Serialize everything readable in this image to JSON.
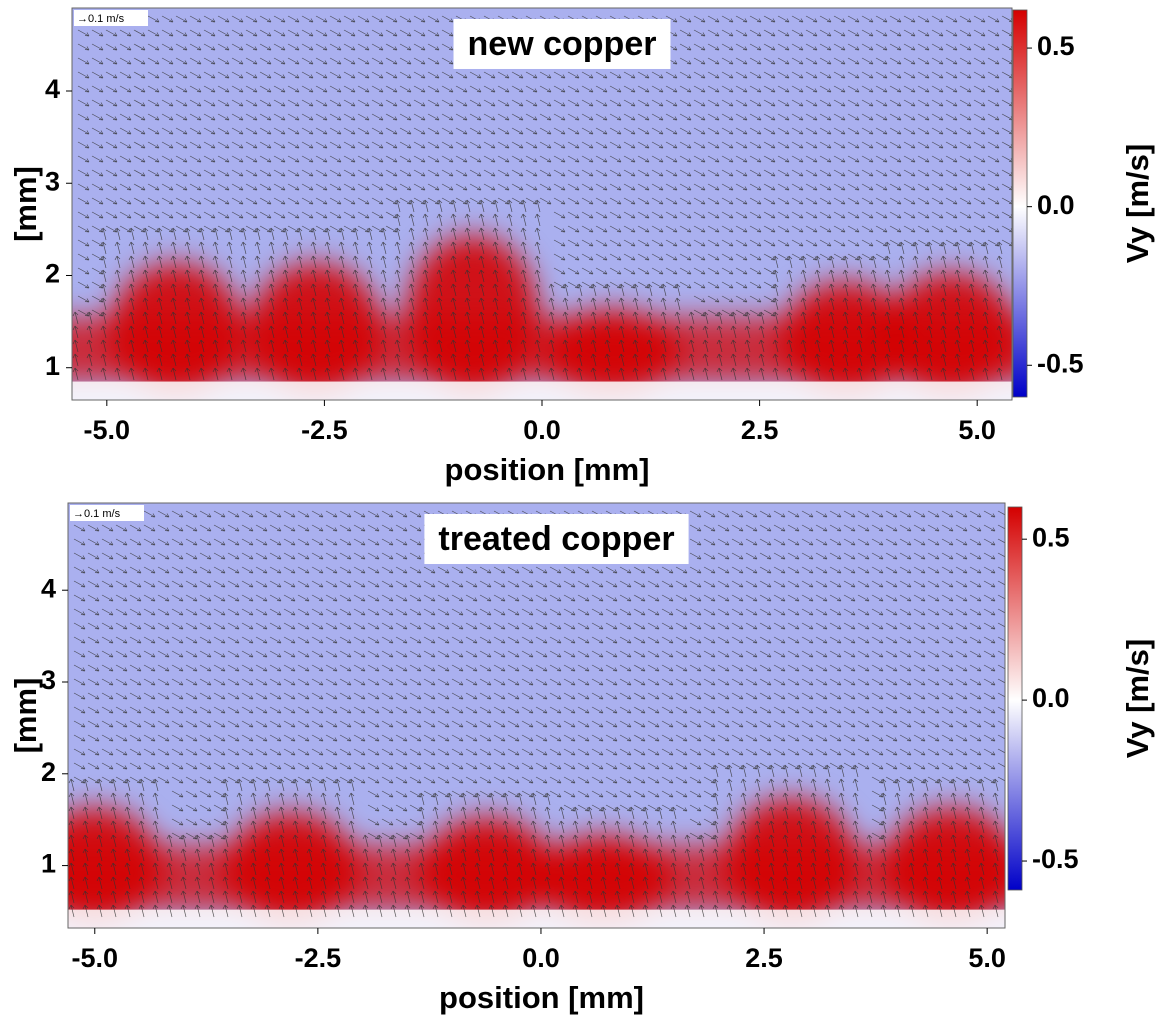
{
  "chart_data": [
    {
      "type": "vector-heatmap",
      "title": "new copper",
      "reference_vector": "→0.1 m/s",
      "xlabel": "position [mm]",
      "ylabel": "[mm]",
      "colorbar_label": "Vy [m/s]",
      "xlim": [
        -5.4,
        5.4
      ],
      "xticks": [
        {
          "value": -5,
          "label": "-5.0"
        },
        -2.5,
        {
          "value": 0,
          "label": "0.0"
        },
        2.5,
        {
          "value": 5,
          "label": "5.0"
        }
      ],
      "ylim": [
        0.65,
        4.9
      ],
      "yticks": [
        1,
        2,
        3,
        4
      ],
      "clim": [
        -0.6,
        0.62
      ],
      "cticks": [
        0.5,
        {
          "value": 0,
          "label": "0.0"
        },
        -0.5
      ],
      "colormap": [
        "#0000c8",
        "#ffffff",
        "#d40000"
      ],
      "background_color": "#aab0ef",
      "plumes": [
        {
          "x": -4.2,
          "top": 2.3
        },
        {
          "x": -2.6,
          "top": 2.3
        },
        {
          "x": -0.8,
          "top": 2.6
        },
        {
          "x": 0.8,
          "top": 1.8
        },
        {
          "x": 3.5,
          "top": 2.1
        },
        {
          "x": 4.7,
          "top": 2.2
        }
      ]
    },
    {
      "type": "vector-heatmap",
      "title": "treated copper",
      "reference_vector": "→0.1 m/s",
      "xlabel": "position [mm]",
      "ylabel": "[mm]",
      "colorbar_label": "Vy [m/s]",
      "xlim": [
        -5.3,
        5.2
      ],
      "xticks": [
        {
          "value": -5,
          "label": "-5.0"
        },
        -2.5,
        {
          "value": 0,
          "label": "0.0"
        },
        2.5,
        {
          "value": 5,
          "label": "5.0"
        }
      ],
      "ylim": [
        0.32,
        4.95
      ],
      "yticks": [
        1,
        2,
        3,
        4
      ],
      "clim": [
        -0.59,
        0.6
      ],
      "cticks": [
        0.5,
        {
          "value": 0,
          "label": "0.0"
        },
        -0.5
      ],
      "colormap": [
        "#0000c8",
        "#ffffff",
        "#d40000"
      ],
      "background_color": "#aab0ef",
      "plumes": [
        {
          "x": -5.0,
          "top": 1.8
        },
        {
          "x": -2.8,
          "top": 1.75
        },
        {
          "x": -0.6,
          "top": 1.7
        },
        {
          "x": 0.7,
          "top": 1.5
        },
        {
          "x": 2.8,
          "top": 1.9
        },
        {
          "x": 4.6,
          "top": 1.8
        }
      ]
    }
  ]
}
